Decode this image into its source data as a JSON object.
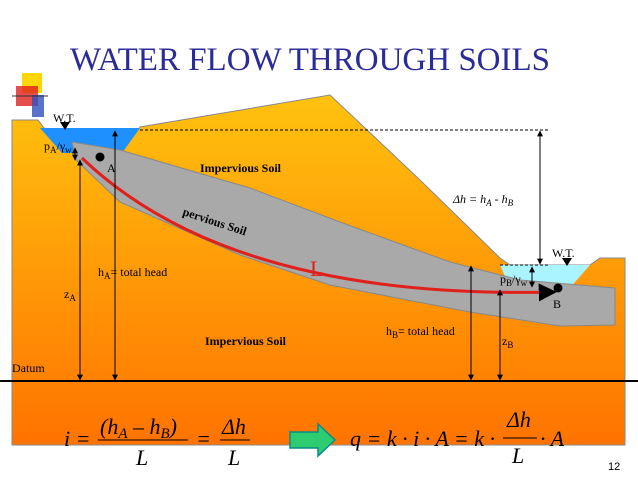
{
  "header": {
    "title": "WATER FLOW THROUGH SOILS"
  },
  "diagram": {
    "wt_left": "W.T.",
    "wt_right": "W.T.",
    "pressure_a": [
      "p",
      "A",
      "/γ",
      "w"
    ],
    "point_a": "A",
    "point_b": "B",
    "impervious_top": "Impervious Soil",
    "impervious_bottom": "Impervious Soil",
    "pervious": "pervious Soil",
    "head_difference": [
      "Δh = h",
      "A",
      " - h",
      "B"
    ],
    "head_a": [
      "h",
      "A",
      "= total head"
    ],
    "length": "L",
    "pressure_b": [
      "p",
      "B",
      "/γ",
      "w"
    ],
    "elevation_a": [
      "z",
      "A"
    ],
    "head_b": [
      "h",
      "B",
      "= total head"
    ],
    "elevation_b": [
      "z",
      "B"
    ],
    "datum": "Datum"
  },
  "equations": {
    "gradient": {
      "lhs": "i =",
      "numerator": [
        "(h",
        "A",
        " – h",
        "B",
        ")"
      ],
      "first_denominator": "L",
      "equals": "=",
      "second_numerator": "Δh",
      "second_denominator": "L"
    },
    "flow": {
      "lhs": "q = k · i · A = k ·",
      "numerator": "Δh",
      "denominator": "L",
      "rhs": "· A"
    }
  },
  "page_number": "12"
}
